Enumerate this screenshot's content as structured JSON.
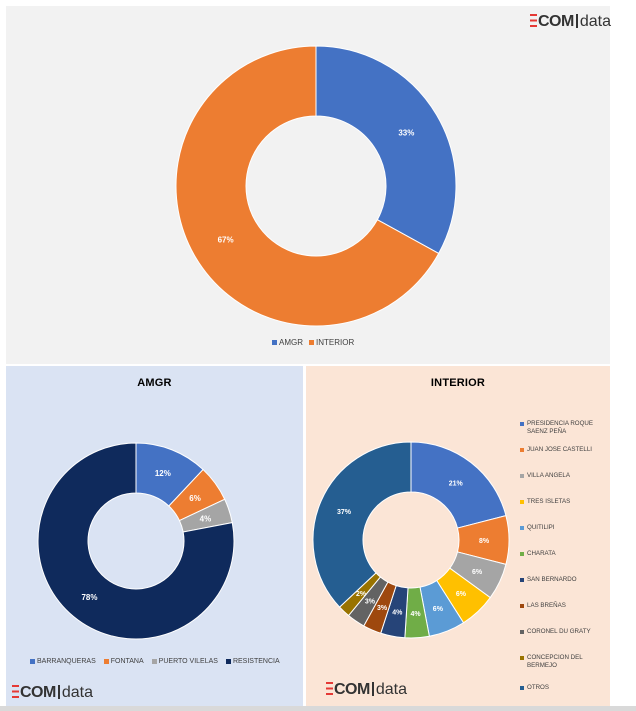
{
  "brand": {
    "com": "COM",
    "data": "data"
  },
  "colors": {
    "blue": "#4472c4",
    "orange": "#ed7d31",
    "gray": "#a5a5a5",
    "yellow": "#ffc000",
    "lightblue": "#5b9bd5",
    "green": "#70ad47",
    "navy": "#264478",
    "brown": "#9e480e",
    "darkgray": "#636363",
    "olive": "#997300",
    "steel": "#255e91",
    "darknavy": "#0f2a5c"
  },
  "chart_data": [
    {
      "type": "donut",
      "title": "",
      "categories": [
        "AMGR",
        "INTERIOR"
      ],
      "values": [
        33,
        67
      ],
      "labels": [
        "33%",
        "67%"
      ],
      "colors": [
        "#4472c4",
        "#ed7d31"
      ],
      "legend": "bottom"
    },
    {
      "type": "donut",
      "title": "AMGR",
      "categories": [
        "BARRANQUERAS",
        "FONTANA",
        "PUERTO VILELAS",
        "RESISTENCIA"
      ],
      "values": [
        12,
        6,
        4,
        78
      ],
      "labels": [
        "12%",
        "6%",
        "4%",
        "78%"
      ],
      "colors": [
        "#4472c4",
        "#ed7d31",
        "#a5a5a5",
        "#0f2a5c"
      ],
      "legend": "bottom"
    },
    {
      "type": "donut",
      "title": "INTERIOR",
      "categories": [
        "PRESIDENCIA ROQUE SAENZ PEÑA",
        "JUAN JOSE CASTELLI",
        "VILLA ANGELA",
        "TRES ISLETAS",
        "QUITILIPI",
        "CHARATA",
        "SAN BERNARDO",
        "LAS BREÑAS",
        "CORONEL DU GRATY",
        "CONCEPCION DEL BERMEJO",
        "OTROS"
      ],
      "values": [
        21,
        8,
        6,
        6,
        6,
        4,
        4,
        3,
        3,
        2,
        37
      ],
      "labels": [
        "21%",
        "8%",
        "6%",
        "6%",
        "6%",
        "4%",
        "4%",
        "3%",
        "3%",
        "2%",
        "37%"
      ],
      "colors": [
        "#4472c4",
        "#ed7d31",
        "#a5a5a5",
        "#ffc000",
        "#5b9bd5",
        "#70ad47",
        "#264478",
        "#9e480e",
        "#636363",
        "#997300",
        "#255e91"
      ],
      "legend": "right"
    }
  ]
}
